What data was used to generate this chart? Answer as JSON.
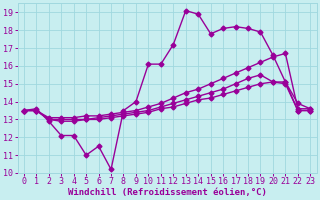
{
  "xlabel": "Windchill (Refroidissement éolien,°C)",
  "x_ticks": [
    0,
    1,
    2,
    3,
    4,
    5,
    6,
    7,
    8,
    9,
    10,
    11,
    12,
    13,
    14,
    15,
    16,
    17,
    18,
    19,
    20,
    21,
    22,
    23
  ],
  "xlim": [
    -0.5,
    23.5
  ],
  "ylim": [
    10,
    19.5
  ],
  "y_ticks": [
    10,
    11,
    12,
    13,
    14,
    15,
    16,
    17,
    18,
    19
  ],
  "bg_color": "#c8eef0",
  "grid_color": "#a0d8df",
  "line_color": "#990099",
  "line1_x": [
    0,
    1,
    2,
    3,
    4,
    5,
    6,
    7,
    8,
    9,
    10,
    11,
    12,
    13,
    14,
    15,
    16,
    17,
    18,
    19,
    20,
    21,
    22,
    23
  ],
  "line1_y": [
    13.5,
    13.6,
    12.9,
    12.1,
    12.1,
    11.0,
    11.5,
    10.2,
    13.5,
    14.0,
    16.1,
    16.1,
    17.2,
    19.1,
    18.9,
    17.8,
    18.1,
    18.2,
    18.1,
    17.9,
    16.6,
    15.1,
    13.9,
    13.6
  ],
  "line2_x": [
    0,
    1,
    2,
    3,
    4,
    5,
    6,
    7,
    8,
    9,
    10,
    11,
    12,
    13,
    14,
    15,
    16,
    17,
    18,
    19,
    20,
    21,
    22,
    23
  ],
  "line2_y": [
    13.5,
    13.5,
    13.1,
    13.1,
    13.1,
    13.2,
    13.2,
    13.3,
    13.4,
    13.5,
    13.7,
    13.9,
    14.2,
    14.5,
    14.7,
    15.0,
    15.3,
    15.6,
    15.9,
    16.2,
    16.5,
    16.7,
    13.6,
    13.6
  ],
  "line3_x": [
    0,
    1,
    2,
    3,
    4,
    5,
    6,
    7,
    8,
    9,
    10,
    11,
    12,
    13,
    14,
    15,
    16,
    17,
    18,
    19,
    20,
    21,
    22,
    23
  ],
  "line3_y": [
    13.5,
    13.5,
    13.0,
    13.0,
    13.0,
    13.0,
    13.1,
    13.2,
    13.3,
    13.4,
    13.5,
    13.7,
    13.9,
    14.1,
    14.3,
    14.5,
    14.7,
    15.0,
    15.3,
    15.5,
    15.1,
    15.1,
    13.5,
    13.5
  ],
  "line4_x": [
    0,
    1,
    2,
    3,
    4,
    5,
    6,
    7,
    8,
    9,
    10,
    11,
    12,
    13,
    14,
    15,
    16,
    17,
    18,
    19,
    20,
    21,
    22,
    23
  ],
  "line4_y": [
    13.5,
    13.5,
    13.0,
    12.9,
    12.9,
    13.0,
    13.0,
    13.1,
    13.2,
    13.3,
    13.4,
    13.6,
    13.7,
    13.9,
    14.1,
    14.2,
    14.4,
    14.6,
    14.8,
    15.0,
    15.1,
    15.0,
    13.5,
    13.5
  ],
  "marker": "D",
  "marker_size": 2.5,
  "line_width": 1.0,
  "xlabel_fontsize": 6.5,
  "tick_fontsize": 6.0
}
